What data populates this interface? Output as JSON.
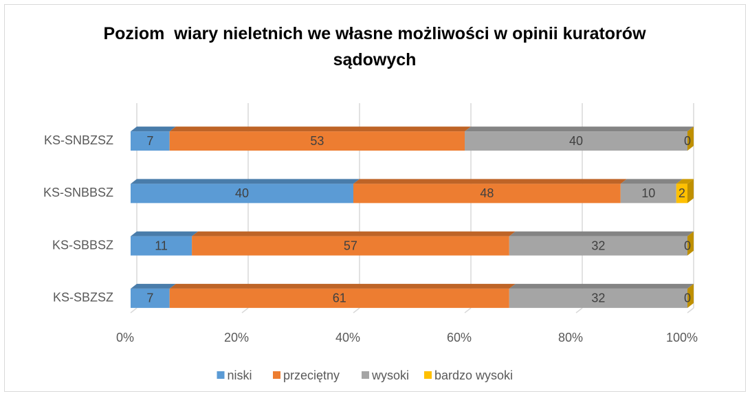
{
  "chart_data": {
    "type": "stacked-bar-horizontal",
    "title": "Poziom  wiary nieletnich we własne możliwości w opinii kuratorów sądowych",
    "categories": [
      "KS-SNBZSZ",
      "KS-SNBBSZ",
      "KS-SBBSZ",
      "KS-SBZSZ"
    ],
    "series": [
      {
        "name": "niski",
        "color": "#5b9bd5",
        "values": [
          7,
          40,
          11,
          7
        ]
      },
      {
        "name": "przeciętny",
        "color": "#ed7d31",
        "values": [
          53,
          48,
          57,
          61
        ]
      },
      {
        "name": "wysoki",
        "color": "#a5a5a5",
        "values": [
          40,
          10,
          32,
          32
        ]
      },
      {
        "name": "bardzo wysoki",
        "color": "#ffc000",
        "values": [
          0,
          2,
          0,
          0
        ]
      }
    ],
    "xlim": [
      0,
      100
    ],
    "xticks": [
      {
        "value": 0,
        "label": "0%"
      },
      {
        "value": 20,
        "label": "20%"
      },
      {
        "value": 40,
        "label": "40%"
      },
      {
        "value": 60,
        "label": "60%"
      },
      {
        "value": 80,
        "label": "80%"
      },
      {
        "value": 100,
        "label": "100%"
      }
    ],
    "grid": true,
    "legend": "bottom"
  }
}
